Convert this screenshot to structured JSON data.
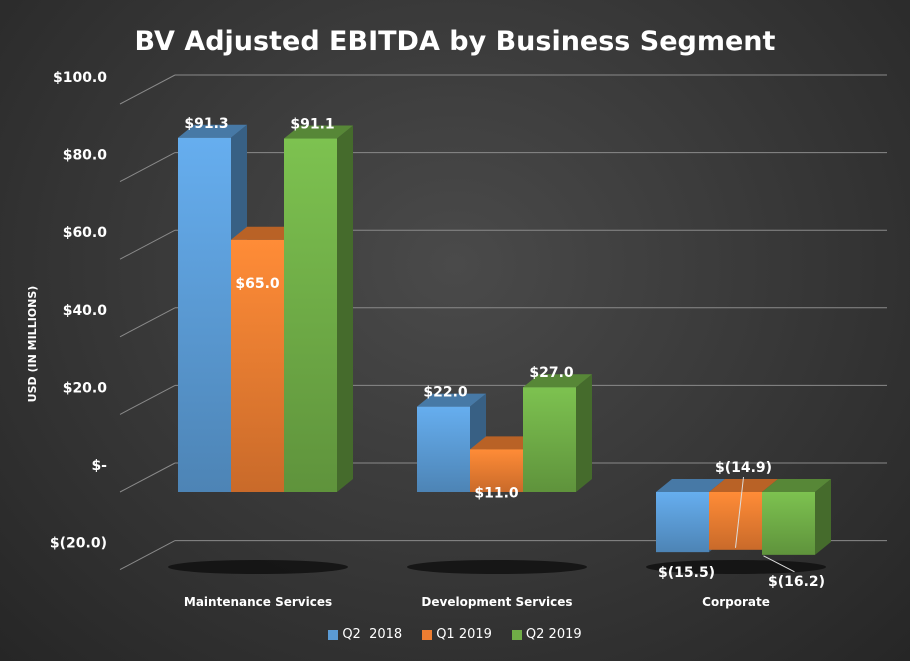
{
  "chart_data": {
    "type": "bar",
    "title": "BV Adjusted EBITDA by Business Segment",
    "ylabel": "USD (IN MILLIONS)",
    "xlabel": "",
    "categories": [
      "Maintenance Services",
      "Development Services",
      "Corporate"
    ],
    "series": [
      {
        "name": "Q2  2018",
        "values": [
          91.3,
          22.0,
          -15.5
        ],
        "labels": [
          "$91.3",
          "$22.0",
          "$(15.5)"
        ],
        "color": "#5b9bd5"
      },
      {
        "name": "Q1 2019",
        "values": [
          65.0,
          11.0,
          -14.9
        ],
        "labels": [
          "$65.0",
          "$11.0",
          "$(14.9)"
        ],
        "color": "#ed7d31"
      },
      {
        "name": "Q2 2019",
        "values": [
          91.1,
          27.0,
          -16.2
        ],
        "labels": [
          "$91.1",
          "$27.0",
          "$(16.2)"
        ],
        "color": "#70ad47"
      }
    ],
    "ylim": [
      -20,
      100
    ],
    "yticks": [
      -20,
      0,
      20,
      40,
      60,
      80,
      100
    ],
    "ytick_labels": [
      "$(20.0)",
      "$-",
      "$20.0",
      "$40.0",
      "$60.0",
      "$80.0",
      "$100.0"
    ],
    "grid": true,
    "legend_position": "bottom",
    "style": "3d"
  }
}
